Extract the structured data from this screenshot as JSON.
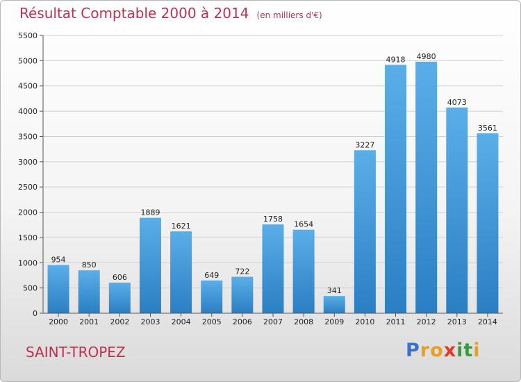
{
  "header": {
    "title": "Résultat Comptable 2000 à 2014",
    "unit": "(en milliers d'€)"
  },
  "footer": {
    "city": "SAINT-TROPEZ",
    "logo_letters": [
      "P",
      "r",
      "o",
      "x",
      "i",
      "t",
      "i"
    ]
  },
  "colors": {
    "title": "#c0304e",
    "bar_light": "#5aaee8",
    "bar_dark": "#2a7fc4",
    "axis": "#555555",
    "grid": "#d0d0d0",
    "logo": [
      "#3a6fd0",
      "#e8a020",
      "#e8a020",
      "#e23a2a",
      "#3a9a3a",
      "#3a9a3a",
      "#e8a020"
    ]
  },
  "chart_data": {
    "type": "bar",
    "title": "Résultat Comptable 2000 à 2014",
    "subtitle": "(en milliers d'€)",
    "xlabel": "",
    "ylabel": "",
    "categories": [
      "2000",
      "2001",
      "2002",
      "2003",
      "2004",
      "2005",
      "2006",
      "2007",
      "2008",
      "2009",
      "2010",
      "2011",
      "2012",
      "2013",
      "2014"
    ],
    "values": [
      954,
      850,
      606,
      1889,
      1621,
      649,
      722,
      1758,
      1654,
      341,
      3227,
      4918,
      4980,
      4073,
      3561
    ],
    "ylim": [
      0,
      5500
    ],
    "yticks": [
      0,
      500,
      1000,
      1500,
      2000,
      2500,
      3000,
      3500,
      4000,
      4500,
      5000,
      5500
    ],
    "grid": true
  }
}
